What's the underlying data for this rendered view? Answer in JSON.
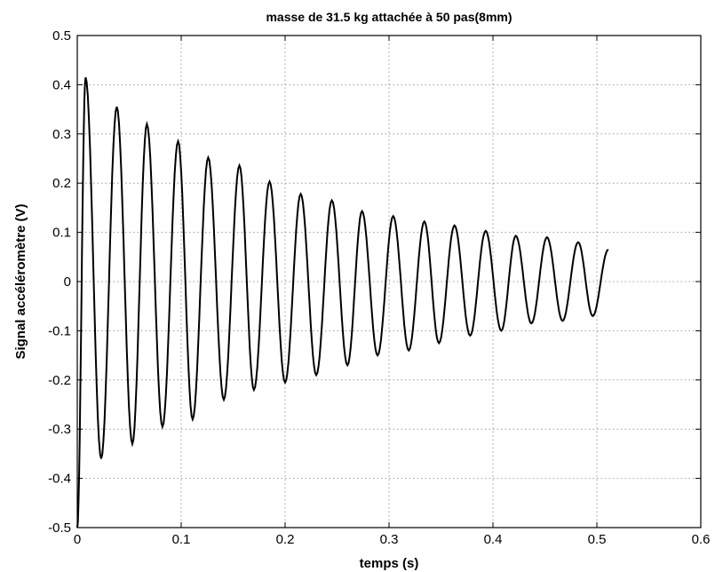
{
  "chart_data": {
    "type": "line",
    "title": "masse de 31.5 kg attachée à 50 pas(8mm)",
    "xlabel": "temps (s)",
    "ylabel": "Signal accéléromètre (V)",
    "xlim": [
      0,
      0.6
    ],
    "ylim": [
      -0.5,
      0.5
    ],
    "x_ticks": [
      "0",
      "0.1",
      "0.2",
      "0.3",
      "0.4",
      "0.5",
      "0.6"
    ],
    "y_ticks": [
      "-0.5",
      "-0.4",
      "-0.3",
      "-0.2",
      "-0.1",
      "0",
      "0.1",
      "0.2",
      "0.3",
      "0.4",
      "0.5"
    ],
    "grid": true,
    "line_color": "#000000",
    "series": [
      {
        "x": [
          0.0,
          0.008,
          0.023,
          0.038,
          0.053,
          0.067,
          0.082,
          0.097,
          0.111,
          0.126,
          0.141,
          0.156,
          0.17,
          0.185,
          0.2,
          0.215,
          0.23,
          0.245,
          0.26,
          0.274,
          0.289,
          0.304,
          0.319,
          0.334,
          0.348,
          0.363,
          0.378,
          0.393,
          0.408,
          0.422,
          0.437,
          0.452,
          0.467,
          0.482,
          0.496,
          0.511
        ],
        "y": [
          -0.5,
          0.415,
          -0.36,
          0.355,
          -0.33,
          0.32,
          -0.295,
          0.285,
          -0.28,
          0.252,
          -0.24,
          0.236,
          -0.22,
          0.203,
          -0.205,
          0.178,
          -0.19,
          0.165,
          -0.17,
          0.143,
          -0.15,
          0.133,
          -0.14,
          0.122,
          -0.125,
          0.114,
          -0.11,
          0.103,
          -0.1,
          0.093,
          -0.085,
          0.09,
          -0.08,
          0.08,
          -0.07,
          0.065
        ]
      }
    ]
  }
}
